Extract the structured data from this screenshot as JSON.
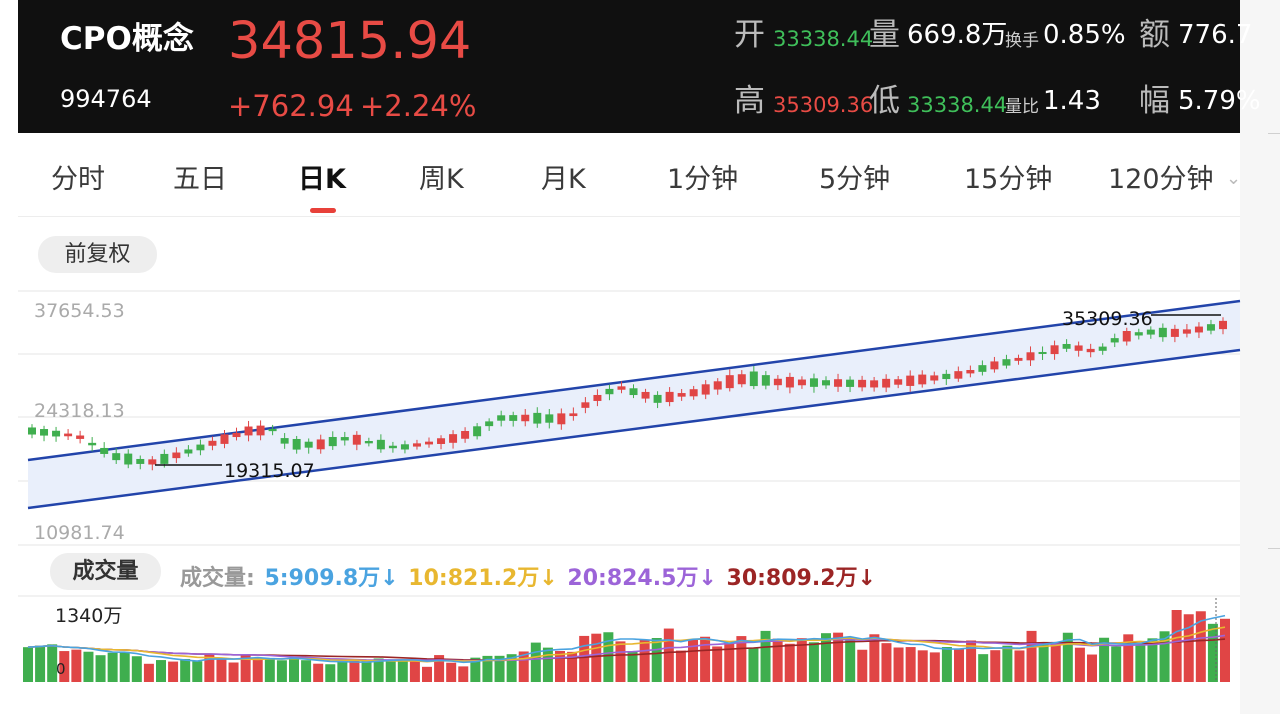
{
  "colors": {
    "up": "#e04545",
    "down": "#3fae4e",
    "channel": "#2244aa",
    "channel_fill": "#e9effb",
    "ma5": "#4aa3e0",
    "ma10": "#e8b730",
    "ma20": "#9c64d8",
    "ma30": "#9b2525"
  },
  "header": {
    "name": "CPO概念",
    "price": "34815.94",
    "code": "994764",
    "change": "+762.94",
    "change_pct": "+2.24%",
    "open_label": "开",
    "open": "33338.44",
    "volume_label": "量",
    "volume": "669.8万",
    "turnover_label": "换手",
    "turnover": "0.85%",
    "amount_label": "额",
    "amount": "776.7",
    "high_label": "高",
    "high": "35309.36",
    "low_label": "低",
    "low": "33338.44",
    "vol_ratio_label": "量比",
    "vol_ratio": "1.43",
    "amplitude_label": "幅",
    "amplitude": "5.79%"
  },
  "tabs": [
    "分时",
    "五日",
    "日K",
    "周K",
    "月K",
    "1分钟",
    "5分钟",
    "15分钟",
    "120分钟"
  ],
  "active_tab": "日K",
  "adjust_label": "前复权",
  "kline": {
    "y_max_label": "37654.53",
    "y_mid_label": "24318.13",
    "y_min_label": "10981.74",
    "high_annotation": "35309.36",
    "low_annotation": "19315.07"
  },
  "volume_panel": {
    "label": "成交量",
    "ma_title": "成交量:",
    "ma5": "5:909.8万↓",
    "ma10": "10:821.2万↓",
    "ma20": "20:824.5万↓",
    "ma30": "30:809.2万↓",
    "y_max_label": "1340万",
    "y_zero_label": "0"
  }
}
